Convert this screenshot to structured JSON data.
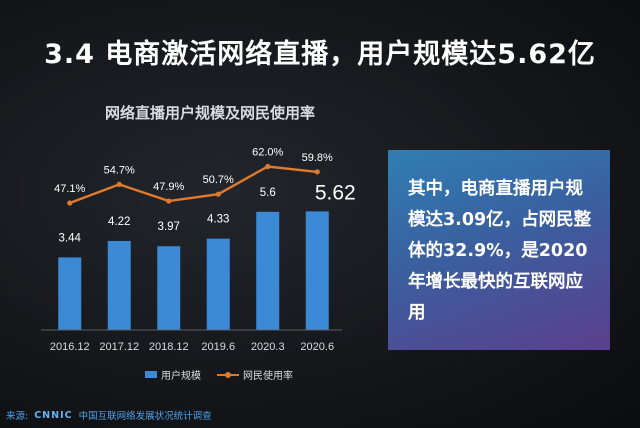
{
  "slide": {
    "title": "3.4 电商激活网络直播，用户规模达5.62亿"
  },
  "callout": {
    "text": "其中，电商直播用户规模达3.09亿，占网民整体的32.9%，是2020年增长最快的互联网应用"
  },
  "footer": {
    "source_label": "来源:",
    "org": "CNNIC",
    "survey": "中国互联网络发展状况统计调查"
  },
  "colors": {
    "bar": "#3c8ad6",
    "line": "#e07a2e",
    "callout_start": "#2f7fb3",
    "callout_end": "#5b3f8c"
  },
  "chart_data": {
    "type": "bar",
    "title": "网络直播用户规模及网民使用率",
    "categories": [
      "2016.12",
      "2017.12",
      "2018.12",
      "2019.6",
      "2020.3",
      "2020.6"
    ],
    "series": [
      {
        "name": "用户规模",
        "type": "bar",
        "values": [
          3.44,
          4.22,
          3.97,
          4.33,
          5.6,
          5.62
        ],
        "labels": [
          "3.44",
          "4.22",
          "3.97",
          "4.33",
          "5.6",
          "5.62"
        ]
      },
      {
        "name": "网民使用率",
        "type": "line",
        "values": [
          47.1,
          54.7,
          47.9,
          50.7,
          62.0,
          59.8
        ],
        "labels": [
          "47.1%",
          "54.7%",
          "47.9%",
          "50.7%",
          "62.0%",
          "59.8%"
        ]
      }
    ],
    "grid": false,
    "legend": "bottom"
  }
}
